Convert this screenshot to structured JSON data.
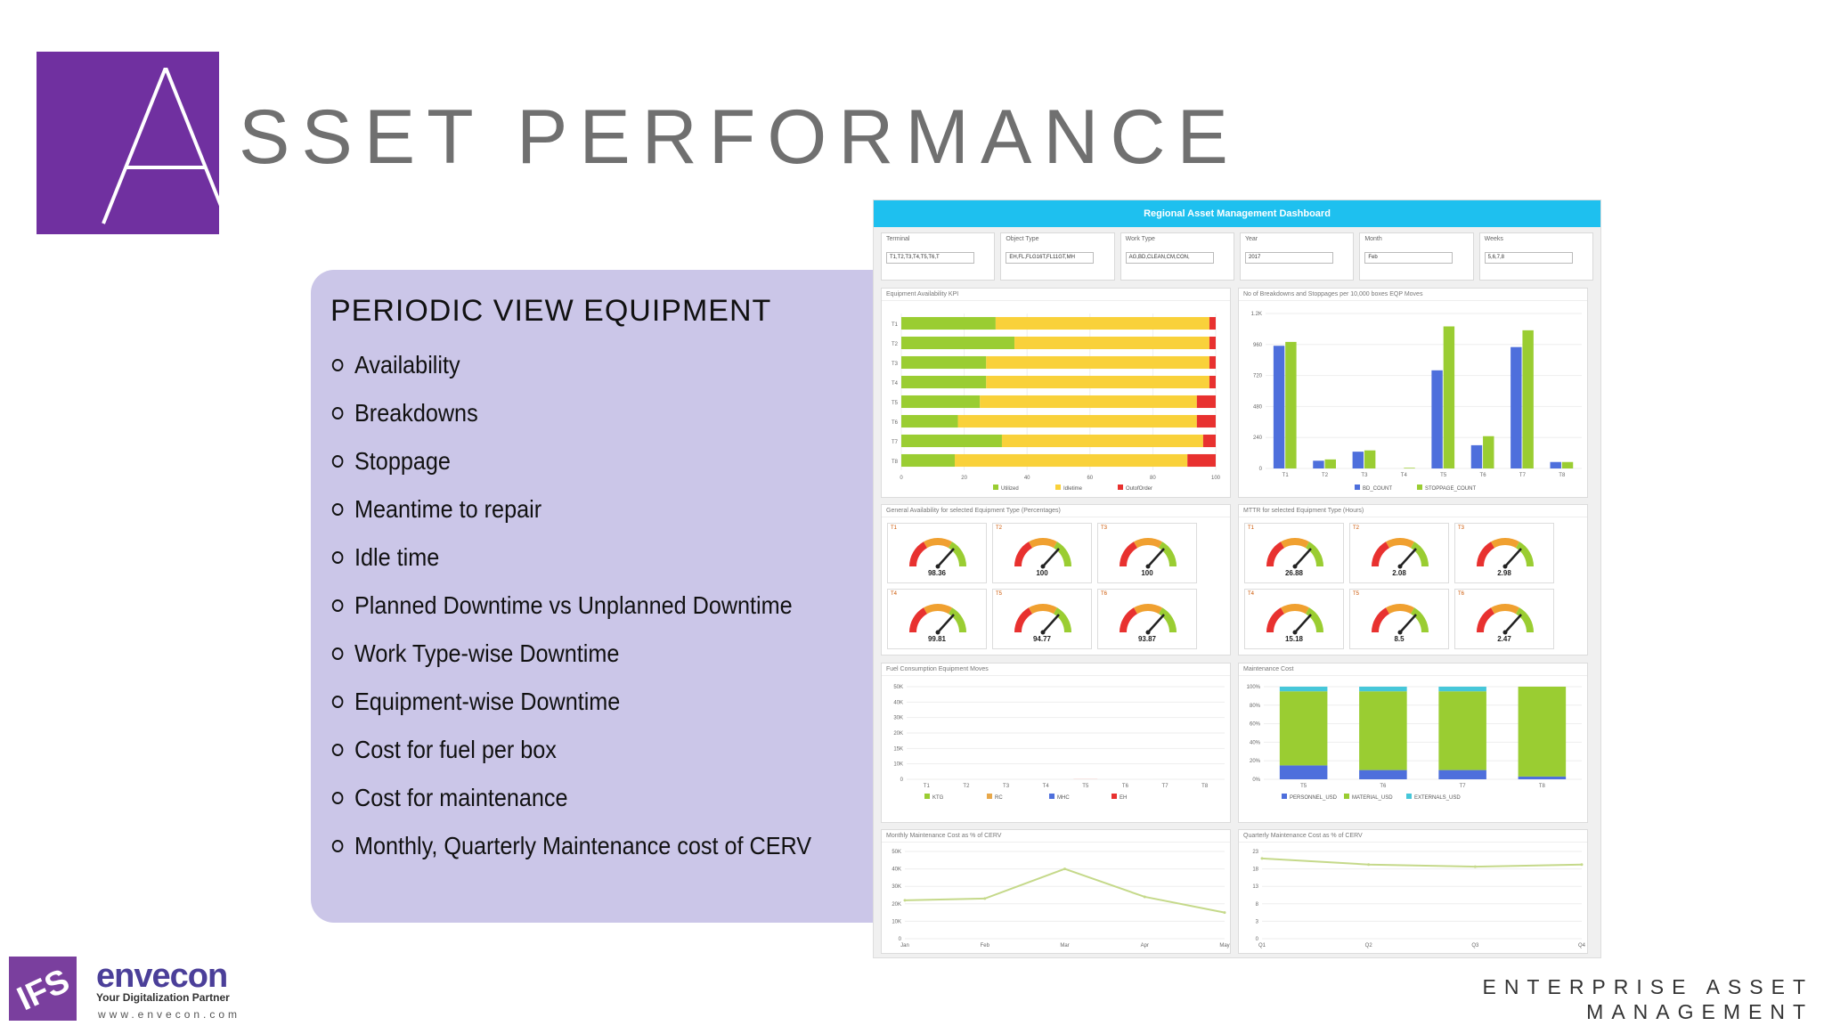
{
  "header": {
    "logo_letter": "A",
    "title": "SSET PERFORMANCE",
    "brand_color": "#7030a0"
  },
  "panel": {
    "title": "PERIODIC VIEW EQUIPMENT",
    "bullets": [
      "Availability",
      "Breakdowns",
      "Stoppage",
      "Meantime to repair",
      "Idle time",
      "Planned Downtime vs Unplanned Downtime",
      "Work Type-wise Downtime",
      "Equipment-wise Downtime",
      "Cost for fuel per box",
      "Cost for maintenance",
      "Monthly, Quarterly Maintenance cost of CERV"
    ]
  },
  "dashboard": {
    "title": "Regional Asset Management Dashboard",
    "filters": [
      {
        "label": "Terminal",
        "value": "T1,T2,T3,T4,T5,T6,T"
      },
      {
        "label": "Object Type",
        "value": "EH,FL,FLG16T,FL11GT,MH"
      },
      {
        "label": "Work Type",
        "value": "AG,BD,CLEAN,CM,CON,"
      },
      {
        "label": "Year",
        "value": "2017"
      },
      {
        "label": "Month",
        "value": "Feb"
      },
      {
        "label": "Weeks",
        "value": "5,6,7,8"
      }
    ],
    "widgets": {
      "availability": "Equipment Availability KPI",
      "breakdowns": "No of Breakdowns and Stoppages per 10,000 boxes EQP Moves",
      "general_availability": "General Availability for selected Equipment Type (Percentages)",
      "mttr": "MTTR for selected Equipment Type (Hours)",
      "fuel": "Fuel Consumption Equipment Moves",
      "maintenance": "Maintenance Cost",
      "monthly": "Monthly Maintenance Cost as % of CERV",
      "quarterly": "Quarterly Maintenance Cost as % of CERV"
    },
    "availability_gauges": [
      {
        "label": "T1",
        "value": "98.36"
      },
      {
        "label": "T2",
        "value": "100"
      },
      {
        "label": "T3",
        "value": "100"
      },
      {
        "label": "T4",
        "value": "99.81"
      },
      {
        "label": "T5",
        "value": "94.77"
      },
      {
        "label": "T6",
        "value": "93.87"
      }
    ],
    "mttr_gauges": [
      {
        "label": "T1",
        "value": "26.88"
      },
      {
        "label": "T2",
        "value": "2.08"
      },
      {
        "label": "T3",
        "value": "2.98"
      },
      {
        "label": "T4",
        "value": "15.18"
      },
      {
        "label": "T5",
        "value": "8.5"
      },
      {
        "label": "T6",
        "value": "2.47"
      }
    ]
  },
  "chart_data": [
    {
      "type": "bar",
      "orientation": "horizontal",
      "stacked": true,
      "categories": [
        "T1",
        "T2",
        "T3",
        "T4",
        "T5",
        "T6",
        "T7",
        "T8"
      ],
      "series": [
        {
          "name": "Utilized",
          "color": "#9acd32",
          "values": [
            30,
            36,
            27,
            27,
            25,
            18,
            32,
            17
          ]
        },
        {
          "name": "Idletime",
          "color": "#f9d13a",
          "values": [
            68,
            62,
            71,
            71,
            69,
            76,
            64,
            74
          ]
        },
        {
          "name": "OutofOrder",
          "color": "#e8312f",
          "values": [
            2,
            2,
            2,
            2,
            6,
            6,
            4,
            9
          ]
        }
      ],
      "xlim": [
        0,
        100
      ],
      "xticks": [
        "0",
        "20",
        "40",
        "60",
        "80",
        "100"
      ]
    },
    {
      "type": "bar",
      "categories": [
        "T1",
        "T2",
        "T3",
        "T4",
        "T5",
        "T6",
        "T7",
        "T8"
      ],
      "series": [
        {
          "name": "BD_COUNT",
          "color": "#4e6fdc",
          "values": [
            950,
            60,
            130,
            0,
            760,
            180,
            940,
            50
          ]
        },
        {
          "name": "STOPPAGE_COUNT",
          "color": "#9acd32",
          "values": [
            980,
            70,
            140,
            5,
            1100,
            250,
            1070,
            50
          ]
        }
      ],
      "ylim": [
        0,
        1200
      ],
      "yticks": [
        "0",
        "240",
        "480",
        "720",
        "960",
        "1.2K"
      ]
    },
    {
      "type": "bar",
      "stacked": true,
      "categories": [
        "T1",
        "T2",
        "T3",
        "T4",
        "T5",
        "T6",
        "T7",
        "T8"
      ],
      "series": [
        {
          "name": "KTG",
          "color": "#9acd32",
          "values": [
            4,
            2,
            2,
            0.5,
            4,
            2,
            3,
            1
          ]
        },
        {
          "name": "RC",
          "color": "#e8a84a",
          "values": [
            0.5,
            0.5,
            0.5,
            0,
            3,
            0.5,
            1,
            0.5
          ]
        },
        {
          "name": "MHC",
          "color": "#4e6fdc",
          "values": [
            0.5,
            1,
            1,
            0,
            0.5,
            0.5,
            2,
            0.5
          ]
        },
        {
          "name": "EH",
          "color": "#e8312f",
          "values": [
            0.5,
            0.5,
            0.5,
            0,
            33,
            0.5,
            1,
            2
          ]
        }
      ],
      "ylim": [
        0,
        40000
      ],
      "yticks": [
        "0",
        "10K",
        "15K",
        "20K",
        "30K",
        "40K",
        "50K"
      ]
    },
    {
      "type": "bar",
      "stacked": true,
      "categories": [
        "T5",
        "T6",
        "T7",
        "T8"
      ],
      "series": [
        {
          "name": "PERSONNEL_USD",
          "color": "#4e6fdc",
          "values": [
            15,
            10,
            10,
            3
          ]
        },
        {
          "name": "MATERIAL_USD",
          "color": "#9acd32",
          "values": [
            80,
            85,
            85,
            97
          ]
        },
        {
          "name": "EXTERNALS_USD",
          "color": "#46c7d9",
          "values": [
            5,
            5,
            5,
            0
          ]
        }
      ],
      "ylim": [
        0,
        100
      ],
      "yticks": [
        "0%",
        "20%",
        "40%",
        "60%",
        "80%",
        "100%"
      ]
    },
    {
      "type": "line",
      "x": [
        "Jan",
        "Feb",
        "Mar",
        "Apr",
        "May"
      ],
      "series": [
        {
          "color": "#c5d98a",
          "values": [
            22000,
            23000,
            40000,
            24000,
            15000
          ]
        }
      ],
      "ylim": [
        0,
        50000
      ],
      "yticks": [
        "0",
        "10K",
        "20K",
        "30K",
        "40K",
        "50K"
      ]
    },
    {
      "type": "line",
      "x": [
        "Q1",
        "Q2",
        "Q3",
        "Q4"
      ],
      "series": [
        {
          "color": "#c5d98a",
          "values": [
            18.4,
            17,
            16.5,
            17
          ]
        }
      ],
      "ylim": [
        0,
        20
      ],
      "yticks": [
        "0",
        "3",
        "8",
        "13",
        "18",
        "23"
      ]
    }
  ],
  "footer": {
    "logo_text": "IFS",
    "company": "envecon",
    "tagline": "Your Digitalization Partner",
    "website": "www.envecon.com",
    "product_line1": "ENTERPRISE ASSET",
    "product_line2": "MANAGEMENT"
  }
}
